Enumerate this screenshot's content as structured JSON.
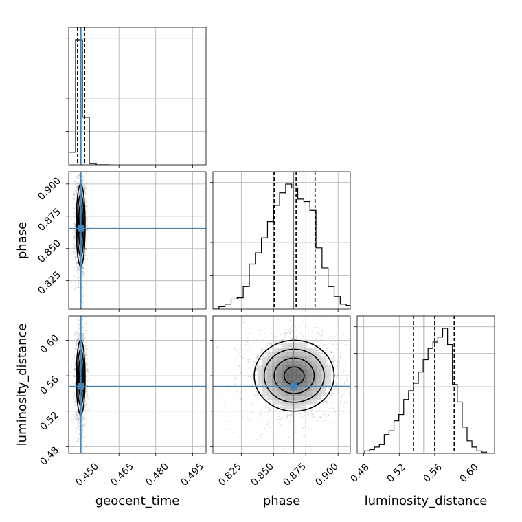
{
  "chart_data": {
    "type": "corner",
    "parameters": [
      "geocent_time",
      "phase",
      "luminosity_distance"
    ],
    "axis_ranges": {
      "geocent_time": [
        0.4445,
        0.5005
      ],
      "phase": [
        0.803,
        0.9095
      ],
      "luminosity_distance": [
        0.4725,
        0.6275
      ]
    },
    "ticks": {
      "geocent_time": [
        0.45,
        0.465,
        0.48,
        0.495
      ],
      "phase": [
        0.825,
        0.85,
        0.875,
        0.9
      ],
      "luminosity_distance": [
        0.48,
        0.52,
        0.56,
        0.6
      ]
    },
    "tick_labels": {
      "geocent_time": [
        "0.450",
        "0.465",
        "0.480",
        "0.495"
      ],
      "phase": [
        "0.825",
        "0.850",
        "0.875",
        "0.900"
      ],
      "luminosity_distance": [
        "0.48",
        "0.52",
        "0.56",
        "0.60"
      ]
    },
    "grid": true,
    "truths": {
      "geocent_time": 0.4495,
      "phase": 0.8655,
      "luminosity_distance": 0.548
    },
    "truth_color": "#4682b4",
    "quantiles": {
      "geocent_time": [
        0.4481,
        0.4493,
        0.451
      ],
      "phase": [
        0.8505,
        0.8675,
        0.8822
      ],
      "luminosity_distance": [
        0.536,
        0.56,
        0.582
      ]
    },
    "histograms": {
      "geocent_time": {
        "edges": [
          0.4445,
          0.4473,
          0.4501,
          0.4529,
          0.4557,
          0.4585,
          0.4613
        ],
        "counts": [
          0.1,
          1.0,
          0.38,
          0.01,
          0.0,
          0.0
        ]
      },
      "phase": {
        "edges": [
          0.803,
          0.8077,
          0.8124,
          0.8171,
          0.8218,
          0.8265,
          0.8312,
          0.8359,
          0.8406,
          0.8453,
          0.85,
          0.8547,
          0.8594,
          0.8641,
          0.8688,
          0.8735,
          0.8782,
          0.8829,
          0.8876,
          0.8923,
          0.897,
          0.9017,
          0.9064,
          0.9095
        ],
        "counts": [
          0.0,
          0.02,
          0.04,
          0.08,
          0.09,
          0.18,
          0.36,
          0.45,
          0.57,
          0.7,
          0.83,
          0.93,
          1.0,
          0.97,
          0.88,
          0.86,
          0.79,
          0.49,
          0.33,
          0.18,
          0.1,
          0.04,
          0.03
        ]
      },
      "luminosity_distance": {
        "edges": [
          0.4755,
          0.481,
          0.4865,
          0.492,
          0.4975,
          0.503,
          0.5085,
          0.514,
          0.5195,
          0.525,
          0.5305,
          0.536,
          0.5415,
          0.547,
          0.5525,
          0.558,
          0.5635,
          0.569,
          0.5745,
          0.58,
          0.5855,
          0.591,
          0.5965,
          0.602,
          0.6075,
          0.613,
          0.6185
        ],
        "counts": [
          0.0,
          0.02,
          0.03,
          0.05,
          0.07,
          0.15,
          0.18,
          0.26,
          0.31,
          0.43,
          0.5,
          0.56,
          0.65,
          0.75,
          0.84,
          0.89,
          0.93,
          1.0,
          0.87,
          0.55,
          0.41,
          0.21,
          0.1,
          0.05,
          0.02,
          0.01
        ]
      }
    },
    "posterior_samples_2d": {
      "phase_vs_luminosity_distance": {
        "mean": [
          0.866,
          0.56
        ],
        "std": [
          0.0155,
          0.02
        ]
      },
      "geocent_time_vs_phase": {
        "mean": [
          0.4494,
          0.868
        ],
        "std": [
          0.0009,
          0.016
        ]
      },
      "geocent_time_vs_luminosity_distance": {
        "mean": [
          0.4494,
          0.558
        ],
        "std": [
          0.0009,
          0.021
        ]
      }
    }
  }
}
